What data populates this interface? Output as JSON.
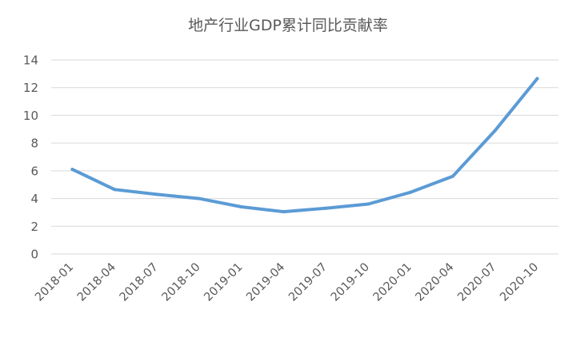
{
  "chart_data": {
    "type": "line",
    "title": "地产行业GDP累计同比贡献率",
    "xlabel": "",
    "ylabel": "",
    "ylim": [
      0,
      14
    ],
    "yticks": [
      0,
      2,
      4,
      6,
      8,
      10,
      12,
      14
    ],
    "grid": true,
    "legend": "none",
    "categories": [
      "2018-01",
      "2018-04",
      "2018-07",
      "2018-10",
      "2019-01",
      "2019-04",
      "2019-07",
      "2019-10",
      "2020-01",
      "2020-04",
      "2020-07",
      "2020-10"
    ],
    "series": [
      {
        "color": "#5b9bd5",
        "values": [
          6.1,
          4.65,
          4.3,
          4.0,
          3.4,
          3.05,
          3.3,
          3.6,
          4.45,
          5.6,
          8.9,
          12.65
        ]
      }
    ]
  }
}
